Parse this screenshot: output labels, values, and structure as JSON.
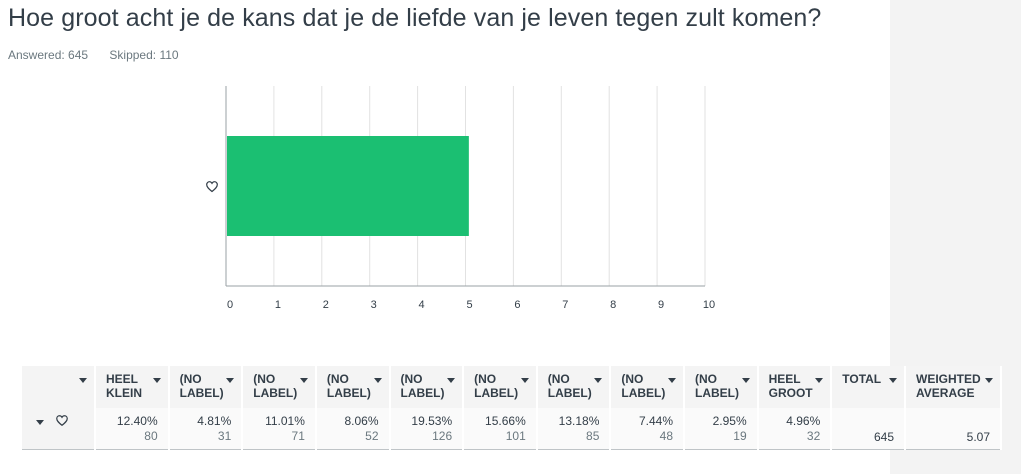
{
  "question_title": "Hoe groot acht je de kans dat je de liefde van je leven tegen zult komen?",
  "answered": "Answered: 645",
  "skipped": "Skipped: 110",
  "row_icon": "heart-icon",
  "colors": {
    "bar": "#1bbf72",
    "grid": "#e2e2e2",
    "axis": "#9aa1a6"
  },
  "chart_data": {
    "type": "bar",
    "orientation": "horizontal",
    "categories": [
      "heart-icon"
    ],
    "values": [
      5.07
    ],
    "xlim": [
      0,
      10
    ],
    "xticks": [
      "0",
      "1",
      "2",
      "3",
      "4",
      "5",
      "6",
      "7",
      "8",
      "9",
      "10"
    ],
    "grid": true
  },
  "table": {
    "headers": [
      "HEEL KLEIN",
      "(NO LABEL)",
      "(NO LABEL)",
      "(NO LABEL)",
      "(NO LABEL)",
      "(NO LABEL)",
      "(NO LABEL)",
      "(NO LABEL)",
      "(NO LABEL)",
      "HEEL GROOT",
      "TOTAL",
      "WEIGHTED AVERAGE"
    ],
    "cells": [
      {
        "pct": "12.40%",
        "count": "80"
      },
      {
        "pct": "4.81%",
        "count": "31"
      },
      {
        "pct": "11.01%",
        "count": "71"
      },
      {
        "pct": "8.06%",
        "count": "52"
      },
      {
        "pct": "19.53%",
        "count": "126"
      },
      {
        "pct": "15.66%",
        "count": "101"
      },
      {
        "pct": "13.18%",
        "count": "85"
      },
      {
        "pct": "7.44%",
        "count": "48"
      },
      {
        "pct": "2.95%",
        "count": "19"
      },
      {
        "pct": "4.96%",
        "count": "32"
      }
    ],
    "total": "645",
    "weighted_average": "5.07"
  }
}
